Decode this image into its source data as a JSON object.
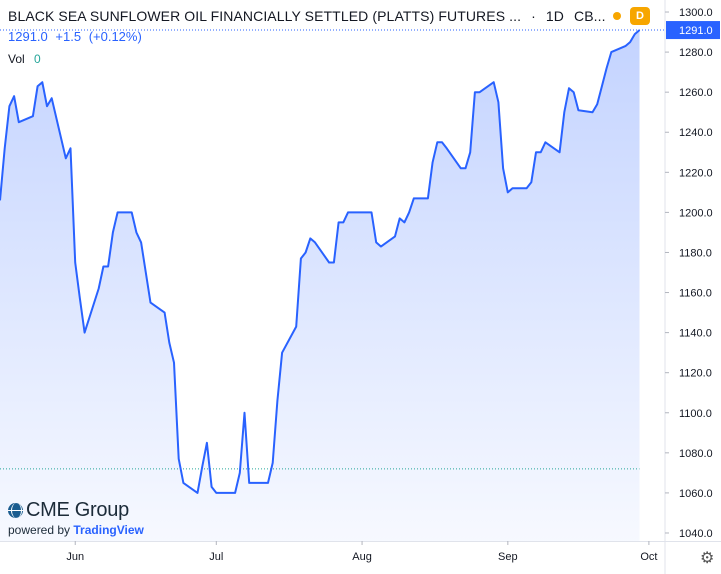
{
  "header": {
    "title": "BLACK SEA SUNFLOWER OIL FINANCIALLY SETTLED (PLATTS) FUTURES ...",
    "interval": "1D",
    "exchange": "CB...",
    "status_dot_color": "#f7a600",
    "badge_label": "D",
    "badge_color": "#f7a600"
  },
  "quote": {
    "last": "1291.0",
    "change": "+1.5",
    "change_pct": "(+0.12%)",
    "color": "#2962ff"
  },
  "volume": {
    "label": "Vol",
    "value": "0",
    "value_color": "#26a69a"
  },
  "branding": {
    "logo_text": "CME Group",
    "powered_by": "powered by",
    "tradingview": "TradingView"
  },
  "colors": {
    "line": "#2962ff",
    "fill_top": "rgba(41,98,255,0.28)",
    "fill_bottom": "rgba(41,98,255,0.04)",
    "last_price_label_bg": "#2962ff",
    "last_price_line": "#2962ff",
    "support_line": "#26a69a",
    "axis_text": "#131722"
  },
  "settings_icon": "gear-icon",
  "chart_data": {
    "type": "area",
    "title": "BLACK SEA SUNFLOWER OIL FINANCIALLY SETTLED (PLATTS) FUTURES ...",
    "xlabel": "",
    "ylabel": "",
    "x_ticks": [
      "Jun",
      "Jul",
      "Aug",
      "Sep",
      "Oct"
    ],
    "y_ticks": [
      "1040.0",
      "1060.0",
      "1080.0",
      "1100.0",
      "1120.0",
      "1140.0",
      "1160.0",
      "1180.0",
      "1200.0",
      "1220.0",
      "1240.0",
      "1260.0",
      "1280.0",
      "1300.0"
    ],
    "ylim": [
      1036,
      1306
    ],
    "x_range": [
      "2022-05-16",
      "2022-10-04"
    ],
    "last_price_label": "1291.0",
    "last_price": 1291.0,
    "horizontal_line": 1072,
    "grid": false,
    "series": [
      {
        "x": [
          "2022-05-16",
          "2022-05-17",
          "2022-05-18",
          "2022-05-19",
          "2022-05-20",
          "2022-05-23",
          "2022-05-24",
          "2022-05-25",
          "2022-05-26",
          "2022-05-27",
          "2022-05-30",
          "2022-05-31",
          "2022-06-01",
          "2022-06-02",
          "2022-06-03",
          "2022-06-06",
          "2022-06-07",
          "2022-06-08",
          "2022-06-09",
          "2022-06-10",
          "2022-06-13",
          "2022-06-14",
          "2022-06-15",
          "2022-06-16",
          "2022-06-17",
          "2022-06-20",
          "2022-06-21",
          "2022-06-22",
          "2022-06-23",
          "2022-06-24",
          "2022-06-27",
          "2022-06-28",
          "2022-06-29",
          "2022-06-30",
          "2022-07-01",
          "2022-07-04",
          "2022-07-05",
          "2022-07-06",
          "2022-07-07",
          "2022-07-08",
          "2022-07-11",
          "2022-07-12",
          "2022-07-13",
          "2022-07-14",
          "2022-07-15",
          "2022-07-18",
          "2022-07-19",
          "2022-07-20",
          "2022-07-21",
          "2022-07-22",
          "2022-07-25",
          "2022-07-26",
          "2022-07-27",
          "2022-07-28",
          "2022-07-29",
          "2022-08-01",
          "2022-08-02",
          "2022-08-03",
          "2022-08-04",
          "2022-08-05",
          "2022-08-08",
          "2022-08-09",
          "2022-08-10",
          "2022-08-11",
          "2022-08-12",
          "2022-08-15",
          "2022-08-16",
          "2022-08-17",
          "2022-08-18",
          "2022-08-19",
          "2022-08-22",
          "2022-08-23",
          "2022-08-24",
          "2022-08-25",
          "2022-08-26",
          "2022-08-29",
          "2022-08-30",
          "2022-08-31",
          "2022-09-01",
          "2022-09-02",
          "2022-09-05",
          "2022-09-06",
          "2022-09-07",
          "2022-09-08",
          "2022-09-09",
          "2022-09-12",
          "2022-09-13",
          "2022-09-14",
          "2022-09-15",
          "2022-09-16",
          "2022-09-19",
          "2022-09-20",
          "2022-09-21",
          "2022-09-22",
          "2022-09-23",
          "2022-09-26",
          "2022-09-27",
          "2022-09-28",
          "2022-09-29"
        ],
        "values": [
          1206,
          1232,
          1253,
          1258,
          1245,
          1248,
          1263,
          1265,
          1253,
          1257,
          1227,
          1232,
          1175,
          1157,
          1140,
          1162,
          1173,
          1173,
          1190,
          1200,
          1200,
          1190,
          1185,
          1170,
          1155,
          1150,
          1135,
          1125,
          1077,
          1065,
          1060,
          1073,
          1085,
          1063,
          1060,
          1060,
          1060,
          1070,
          1100,
          1065,
          1065,
          1065,
          1075,
          1106,
          1130,
          1143,
          1177,
          1180,
          1187,
          1185,
          1175,
          1175,
          1195,
          1195,
          1200,
          1200,
          1200,
          1200,
          1185,
          1183,
          1188,
          1197,
          1195,
          1200,
          1207,
          1207,
          1225,
          1235,
          1235,
          1232,
          1222,
          1222,
          1230,
          1260,
          1260,
          1265,
          1255,
          1222,
          1210,
          1212,
          1212,
          1215,
          1230,
          1230,
          1235,
          1230,
          1250,
          1262,
          1260,
          1251,
          1250,
          1254,
          1263,
          1272,
          1280,
          1283,
          1285,
          1289,
          1291
        ]
      }
    ]
  }
}
